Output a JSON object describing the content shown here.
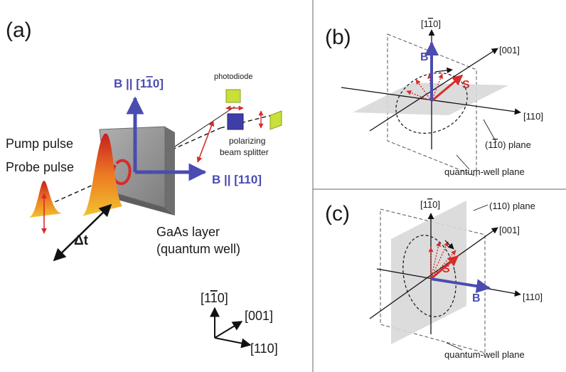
{
  "panel_a": {
    "tag": "(a)",
    "b_vertical": "B || [1",
    "b_vertical_bar": "1",
    "b_vertical_end": "0]",
    "b_horizontal": "B || [110]",
    "photodiode": "photodiode",
    "splitter_line1": "polarizing",
    "splitter_line2": "beam splitter",
    "pump": "Pump pulse",
    "probe": "Probe pulse",
    "delay": "Δt",
    "layer_line1": "GaAs layer",
    "layer_line2": "(quantum well)",
    "axes": {
      "up_a": "[1",
      "up_bar": "1",
      "up_b": "0]",
      "diag": "[001]",
      "right": "[110]"
    }
  },
  "panel_b": {
    "tag": "(b)",
    "up_a": "[1",
    "up_bar": "1",
    "up_b": "0]",
    "diag": "[001]",
    "right": "[110]",
    "B": "B",
    "S": "S",
    "plane_a": "(1",
    "plane_bar": "1",
    "plane_b": "0) plane",
    "qw_plane": "quantum-well plane"
  },
  "panel_c": {
    "tag": "(c)",
    "up_a": "[1",
    "up_bar": "1",
    "up_b": "0]",
    "diag": "[001]",
    "right": "[110]",
    "B": "B",
    "S": "S",
    "plane": "(110) plane",
    "qw_plane": "quantum-well plane"
  },
  "colors": {
    "field": "#4b4cb0",
    "spin": "#d82b2b",
    "plane": "#d8d8d8",
    "layer": "#9a9a9a"
  }
}
